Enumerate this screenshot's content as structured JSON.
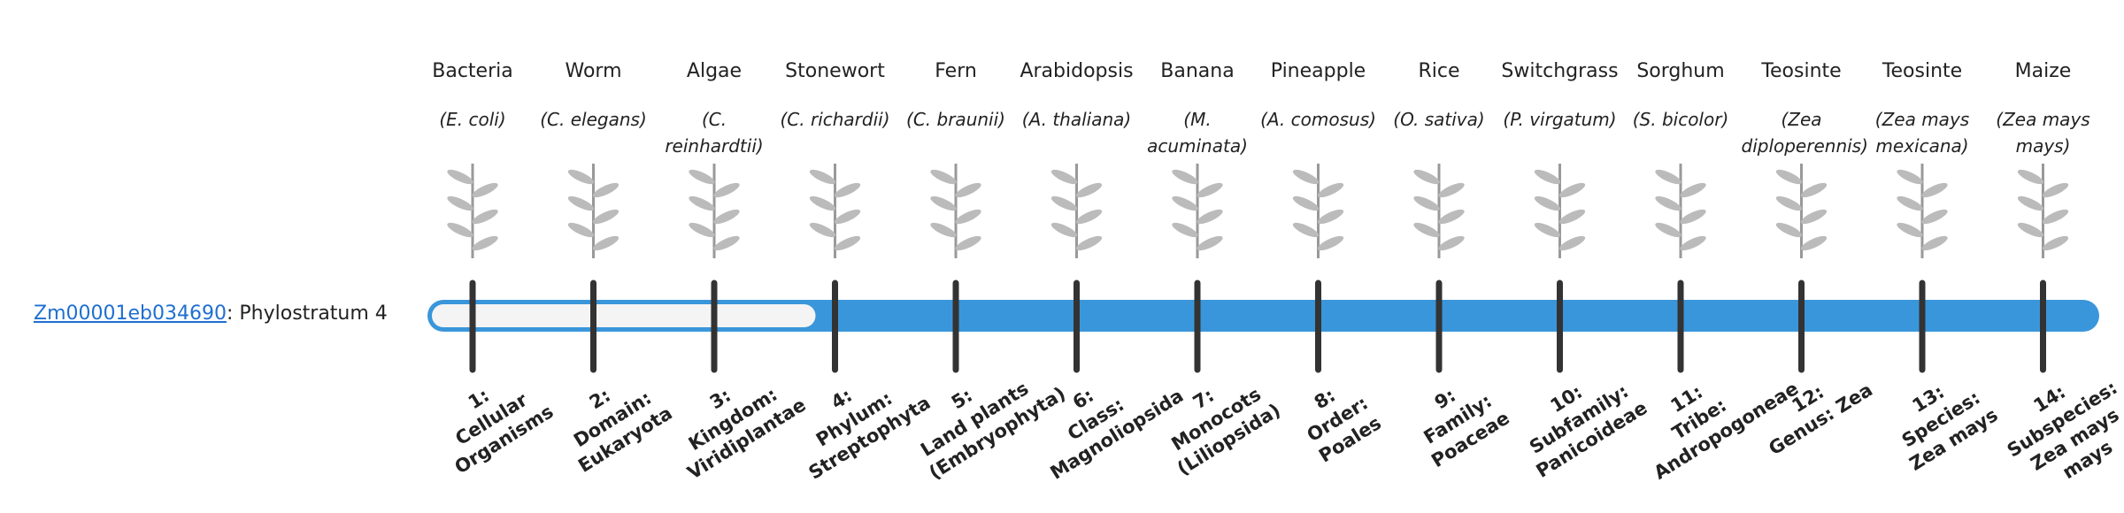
{
  "gene": {
    "id": "Zm00001eb034690",
    "label": ": Phylostratum 4",
    "phylostratum": 4
  },
  "organisms": [
    {
      "name": "Bacteria",
      "species": "(E. coli)"
    },
    {
      "name": "Worm",
      "species": "(C. elegans)"
    },
    {
      "name": "Algae",
      "species": "(C. reinhardtii)"
    },
    {
      "name": "Stonewort",
      "species": "(C. richardii)"
    },
    {
      "name": "Fern",
      "species": "(C. braunii)"
    },
    {
      "name": "Arabidopsis",
      "species": "(A. thaliana)"
    },
    {
      "name": "Banana",
      "species": "(M. acuminata)"
    },
    {
      "name": "Pineapple",
      "species": "(A. comosus)"
    },
    {
      "name": "Rice",
      "species": "(O. sativa)"
    },
    {
      "name": "Switchgrass",
      "species": "(P. virgatum)"
    },
    {
      "name": "Sorghum",
      "species": "(S. bicolor)"
    },
    {
      "name": "Teosinte",
      "species": "(Zea diploperennis)"
    },
    {
      "name": "Teosinte",
      "species": "(Zea mays mexicana)"
    },
    {
      "name": "Maize",
      "species": "(Zea mays mays)"
    }
  ],
  "strata": [
    {
      "num": "1:",
      "name": "Cellular Organisms"
    },
    {
      "num": "2:",
      "name": "Domain: Eukaryota"
    },
    {
      "num": "3:",
      "name": "Kingdom: Viridiplantae"
    },
    {
      "num": "4:",
      "name": "Phylum: Streptophyta"
    },
    {
      "num": "5:",
      "name": "Land plants (Embryophyta)"
    },
    {
      "num": "6:",
      "name": "Class: Magnoliopsida"
    },
    {
      "num": "7:",
      "name": "Monocots (Liliopsida)"
    },
    {
      "num": "8:",
      "name": "Order: Poales"
    },
    {
      "num": "9:",
      "name": "Family: Poaceae"
    },
    {
      "num": "10:",
      "name": "Subfamily: Panicoideae"
    },
    {
      "num": "11:",
      "name": "Tribe: Andropogoneae"
    },
    {
      "num": "12:",
      "name": "Genus: Zea"
    },
    {
      "num": "13:",
      "name": "Species: Zea mays"
    },
    {
      "num": "14:",
      "name": "Subspecies: Zea mays mays"
    }
  ]
}
